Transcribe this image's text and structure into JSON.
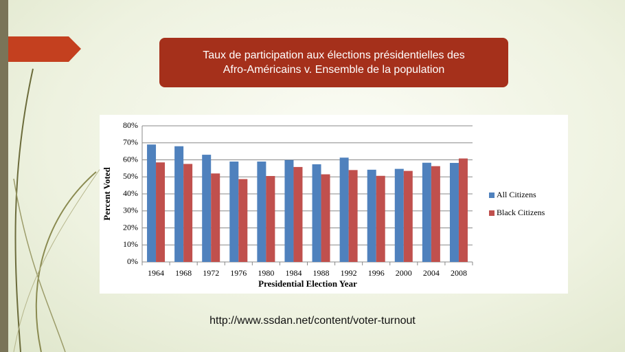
{
  "slide": {
    "title": [
      "Taux de participation aux élections présidentielles des",
      "Afro-Américains v. Ensemble de la population"
    ],
    "source": "http://www.ssdan.net/content/voter-turnout"
  },
  "chart_data": {
    "type": "bar",
    "categories": [
      "1964",
      "1968",
      "1972",
      "1976",
      "1980",
      "1984",
      "1988",
      "1992",
      "1996",
      "2000",
      "2004",
      "2008"
    ],
    "series": [
      {
        "name": "All Citizens",
        "color": "#4f81bd",
        "values": [
          69,
          68,
          63,
          59,
          59,
          59.9,
          57.4,
          61.3,
          54.2,
          54.7,
          58.3,
          58.2
        ]
      },
      {
        "name": "Black Citizens",
        "color": "#c0504d",
        "values": [
          58.5,
          57.6,
          52,
          48.7,
          50.5,
          55.8,
          51.5,
          54,
          50.6,
          53.5,
          56.3,
          60.8
        ]
      }
    ],
    "x_label": "Presidential Election Year",
    "y_label": "Percent Voted",
    "ylim": [
      0,
      80
    ],
    "yticks": [
      {
        "value": 0,
        "label": "0%"
      },
      {
        "value": 10,
        "label": "10%"
      },
      {
        "value": 20,
        "label": "20%"
      },
      {
        "value": 30,
        "label": "30%"
      },
      {
        "value": 40,
        "label": "40%"
      },
      {
        "value": 50,
        "label": "50%"
      },
      {
        "value": 60,
        "label": "60%"
      },
      {
        "value": 70,
        "label": "70%"
      },
      {
        "value": 80,
        "label": "80%"
      }
    ],
    "grid": true,
    "legend": "right"
  }
}
